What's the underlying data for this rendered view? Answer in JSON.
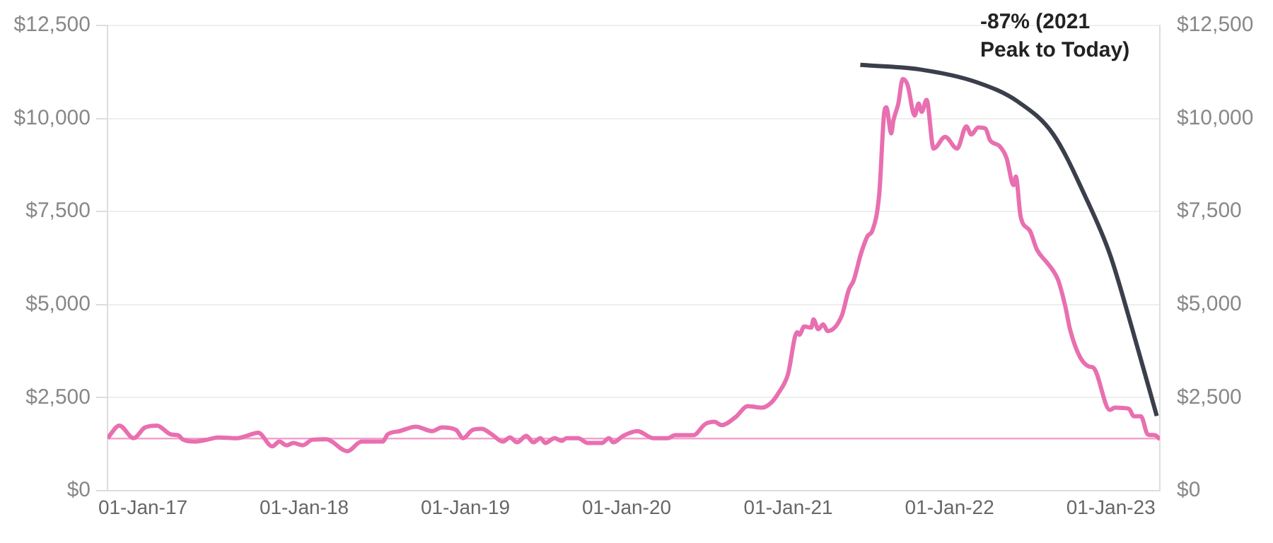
{
  "chart_data": {
    "type": "line",
    "annotations": [
      "-87% (2021 Peak to Today)"
    ],
    "x": [
      "2016-10-13",
      "2016-11-09",
      "2016-12-11",
      "2017-01-06",
      "2017-02-02",
      "2017-03-06",
      "2017-03-22",
      "2017-04-01",
      "2017-04-28",
      "2017-05-30",
      "2017-06-20",
      "2017-08-02",
      "2017-08-23",
      "2017-09-19",
      "2017-10-21",
      "2017-11-06",
      "2017-11-22",
      "2017-12-08",
      "2017-12-29",
      "2018-01-20",
      "2018-02-20",
      "2018-04-09",
      "2018-05-11",
      "2018-06-28",
      "2018-07-09",
      "2018-08-05",
      "2018-09-11",
      "2018-10-18",
      "2018-11-09",
      "2018-12-11",
      "2018-12-27",
      "2019-01-17",
      "2019-02-07",
      "2019-02-28",
      "2019-03-27",
      "2019-04-12",
      "2019-04-28",
      "2019-05-19",
      "2019-06-04",
      "2019-06-20",
      "2019-07-01",
      "2019-07-22",
      "2019-08-07",
      "2019-08-18",
      "2019-09-13",
      "2019-10-05",
      "2019-11-06",
      "2019-11-22",
      "2019-12-02",
      "2019-12-24",
      "2020-01-25",
      "2020-03-02",
      "2020-04-03",
      "2020-04-19",
      "2020-05-31",
      "2020-06-27",
      "2020-07-18",
      "2020-08-03",
      "2020-09-04",
      "2020-10-01",
      "2020-11-02",
      "2020-11-23",
      "2020-12-09",
      "2020-12-31",
      "2021-01-21",
      "2021-01-26",
      "2021-02-06",
      "2021-02-22",
      "2021-02-27",
      "2021-03-10",
      "2021-03-21",
      "2021-03-31",
      "2021-05-02",
      "2021-05-18",
      "2021-05-29",
      "2021-06-14",
      "2021-06-30",
      "2021-07-10",
      "2021-07-26",
      "2021-08-06",
      "2021-08-11",
      "2021-08-22",
      "2021-08-27",
      "2021-09-07",
      "2021-09-17",
      "2021-09-28",
      "2021-10-14",
      "2021-10-23",
      "2021-10-30",
      "2021-11-10",
      "2021-11-26",
      "2021-12-22",
      "2022-01-18",
      "2022-02-08",
      "2022-02-19",
      "2022-03-07",
      "2022-03-23",
      "2022-04-03",
      "2022-04-24",
      "2022-05-10",
      "2022-05-26",
      "2022-05-31",
      "2022-06-11",
      "2022-07-02",
      "2022-07-18",
      "2022-08-08",
      "2022-08-24",
      "2022-09-04",
      "2022-09-20",
      "2022-10-01",
      "2022-10-22",
      "2022-11-12",
      "2022-11-23",
      "2022-12-30",
      "2023-01-10",
      "2023-02-11",
      "2023-02-22",
      "2023-03-10",
      "2023-03-26",
      "2023-04-11",
      "2023-04-22"
    ],
    "series": [
      {
        "color": "#e86fb0",
        "values": [
          1410,
          1750,
          1410,
          1700,
          1750,
          1510,
          1490,
          1380,
          1320,
          1380,
          1430,
          1410,
          1470,
          1560,
          1190,
          1320,
          1220,
          1280,
          1220,
          1370,
          1380,
          1060,
          1320,
          1320,
          1510,
          1600,
          1720,
          1600,
          1700,
          1630,
          1410,
          1630,
          1660,
          1530,
          1320,
          1430,
          1300,
          1470,
          1300,
          1410,
          1280,
          1410,
          1340,
          1410,
          1410,
          1280,
          1280,
          1410,
          1300,
          1470,
          1600,
          1410,
          1410,
          1490,
          1490,
          1790,
          1850,
          1760,
          1980,
          2270,
          2230,
          2360,
          2610,
          3120,
          4260,
          4190,
          4410,
          4380,
          4600,
          4340,
          4470,
          4290,
          4700,
          5400,
          5650,
          6350,
          6850,
          6980,
          7990,
          10140,
          10300,
          9600,
          9950,
          10400,
          11060,
          10900,
          10080,
          10400,
          10180,
          10500,
          9190,
          9510,
          9190,
          9790,
          9570,
          9760,
          9730,
          9410,
          9260,
          8940,
          8210,
          8440,
          7360,
          6980,
          6470,
          6150,
          5900,
          5650,
          4950,
          4320,
          3620,
          3340,
          3300,
          2170,
          2230,
          2200,
          2000,
          2000,
          1510,
          1490,
          1380
        ]
      },
      {
        "color": "#3b3f4c",
        "x": [
          "2021-06-13",
          "2021-10-25",
          "2022-03-02",
          "2022-06-05",
          "2022-08-24",
          "2022-11-06",
          "2022-12-30",
          "2023-02-16",
          "2023-04-15"
        ],
        "values": [
          11440,
          11320,
          10980,
          10450,
          9570,
          7860,
          6350,
          4450,
          2010
        ]
      }
    ],
    "xlim": [
      "2016-10-13",
      "2023-04-22"
    ],
    "xticks": [
      {
        "value": "2017-01-01",
        "label": "01-Jan-17"
      },
      {
        "value": "2018-01-01",
        "label": "01-Jan-18"
      },
      {
        "value": "2019-01-01",
        "label": "01-Jan-19"
      },
      {
        "value": "2020-01-01",
        "label": "01-Jan-20"
      },
      {
        "value": "2021-01-01",
        "label": "01-Jan-21"
      },
      {
        "value": "2022-01-01",
        "label": "01-Jan-22"
      },
      {
        "value": "2023-01-01",
        "label": "01-Jan-23"
      }
    ],
    "ylim": [
      0,
      12500
    ],
    "yticks": [
      {
        "value": 0,
        "label": "$0"
      },
      {
        "value": 2500,
        "label": "$2,500"
      },
      {
        "value": 5000,
        "label": "$5,000"
      },
      {
        "value": 7500,
        "label": "$7,500"
      },
      {
        "value": 10000,
        "label": "$10,000"
      },
      {
        "value": 12500,
        "label": "$12,500"
      }
    ],
    "y2lim": [
      0,
      12500
    ],
    "y2ticks": [
      {
        "value": 0,
        "label": "$0"
      },
      {
        "value": 2500,
        "label": "$2,500"
      },
      {
        "value": 5000,
        "label": "$5,000"
      },
      {
        "value": 7500,
        "label": "$7,500"
      },
      {
        "value": 10000,
        "label": "$10,000"
      },
      {
        "value": 12500,
        "label": "$12,500"
      }
    ],
    "ref_lines": [
      {
        "axis": "y",
        "value": 1400,
        "color": "#f3a3cc"
      }
    ],
    "grid": "y",
    "legend": false,
    "marker": "none",
    "line_style": "solid"
  }
}
